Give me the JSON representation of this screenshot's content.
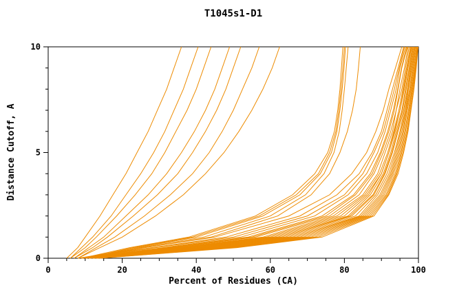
{
  "page": {
    "background": "#ffffff"
  },
  "chart_data": {
    "type": "line",
    "title": "T1045s1-D1",
    "xlabel": "Percent of Residues (CA)",
    "ylabel": "Distance Cutoff, A",
    "xlim": [
      0,
      100
    ],
    "ylim": [
      0,
      10
    ],
    "x_major_ticks": [
      0,
      20,
      40,
      60,
      80,
      100
    ],
    "x_minor_step": 5,
    "y_major_ticks": [
      0,
      5,
      10
    ],
    "y_minor_step": 1,
    "grid": false,
    "legend": "none",
    "series_color": "#ED8B00",
    "axis_color": "#000000",
    "y_grid": [
      0,
      0.5,
      1,
      2,
      3,
      4,
      5,
      6,
      7,
      8,
      9,
      10
    ],
    "series": [
      {
        "x": [
          8,
          28,
          48,
          68,
          78,
          84,
          87.5,
          90,
          91.5,
          93,
          94.5,
          96
        ]
      },
      {
        "x": [
          9,
          31,
          52,
          72,
          81,
          86,
          89,
          91,
          92.5,
          94,
          95,
          96.5
        ]
      },
      {
        "x": [
          9,
          33,
          55,
          75,
          83,
          87.5,
          90,
          92,
          93.5,
          94.5,
          95.5,
          97
        ]
      },
      {
        "x": [
          10,
          35,
          58,
          77,
          85,
          89,
          91,
          93,
          94,
          95.5,
          96.5,
          97.5
        ]
      },
      {
        "x": [
          10,
          37,
          60,
          79,
          86,
          90,
          92,
          93.5,
          95,
          96,
          97,
          98
        ]
      },
      {
        "x": [
          11,
          39,
          62,
          81,
          87,
          90.5,
          92.5,
          94,
          95.5,
          96.5,
          97.5,
          98.3
        ]
      },
      {
        "x": [
          11,
          41,
          64,
          82,
          88,
          91,
          93,
          94.5,
          96,
          97,
          97.8,
          98.6
        ]
      },
      {
        "x": [
          12,
          43,
          66,
          84,
          89,
          92,
          93.8,
          95.2,
          96.5,
          97.3,
          98.2,
          99
        ]
      },
      {
        "x": [
          12,
          45,
          68,
          85,
          90,
          92.7,
          94.4,
          95.8,
          96.8,
          97.8,
          98.6,
          99.3
        ]
      },
      {
        "x": [
          13,
          47,
          70,
          86,
          90.8,
          93.3,
          95,
          96.3,
          97.3,
          98.2,
          99,
          99.7
        ]
      },
      {
        "x": [
          13,
          49,
          72,
          87,
          91.5,
          94,
          95.5,
          96.8,
          97.7,
          98.5,
          99.2,
          99.8
        ]
      },
      {
        "x": [
          14,
          51,
          74,
          88,
          92,
          94.5,
          96,
          97.2,
          98,
          98.8,
          99.4,
          99.9
        ]
      },
      {
        "x": [
          8,
          26,
          45,
          65,
          76,
          82,
          86,
          88.5,
          90.5,
          92,
          93.8,
          95.5
        ]
      },
      {
        "x": [
          9,
          29,
          50,
          70,
          80,
          85,
          88,
          90.5,
          92,
          93.5,
          94.8,
          96.2
        ]
      },
      {
        "x": [
          10,
          34,
          56,
          76,
          84,
          88,
          90.5,
          92.5,
          94,
          95,
          96.2,
          97.2
        ]
      },
      {
        "x": [
          11,
          38,
          61,
          80,
          86.5,
          90,
          92,
          93.7,
          95,
          96.2,
          97.2,
          98.1
        ]
      },
      {
        "x": [
          12,
          42,
          65,
          83,
          88.5,
          91.5,
          93.5,
          95,
          96.2,
          97.2,
          98,
          98.8
        ]
      },
      {
        "x": [
          13,
          46,
          69,
          85.5,
          90.4,
          93,
          94.7,
          96,
          97,
          98,
          98.8,
          99.5
        ]
      },
      {
        "x": [
          14,
          50,
          73,
          87.5,
          91.8,
          94.2,
          95.8,
          97,
          97.9,
          98.7,
          99.3,
          99.9
        ]
      },
      {
        "x": [
          10,
          36,
          59,
          78,
          85.5,
          89.5,
          91.7,
          93.3,
          94.7,
          95.8,
          96.8,
          97.8
        ]
      },
      {
        "x": [
          11,
          40,
          63,
          81.5,
          87.7,
          90.8,
          92.8,
          94.3,
          95.7,
          96.7,
          97.6,
          98.4
        ]
      },
      {
        "x": [
          12,
          44,
          67,
          84.5,
          89.6,
          92.4,
          94.1,
          95.5,
          96.6,
          97.6,
          98.4,
          99.1
        ]
      },
      {
        "x": [
          13,
          48,
          71,
          86.5,
          91.2,
          93.7,
          95.3,
          96.5,
          97.5,
          98.3,
          99.1,
          99.6
        ]
      },
      {
        "x": [
          9,
          32,
          54,
          74,
          82.5,
          87,
          89.7,
          91.7,
          93.2,
          94.4,
          95.4,
          96.8
        ]
      },
      {
        "x": [
          9,
          22,
          38,
          56,
          66,
          72,
          75.5,
          77.3,
          78.2,
          78.8,
          79.2,
          79.6
        ]
      },
      {
        "x": [
          10,
          24,
          40,
          58,
          68,
          73.5,
          76.5,
          78,
          78.8,
          79.4,
          79.9,
          80.3
        ]
      },
      {
        "x": [
          10,
          23,
          39,
          57,
          67,
          73,
          76,
          77.7,
          78.5,
          79.1,
          79.6,
          80
        ]
      },
      {
        "x": [
          11,
          25,
          42,
          60,
          69.5,
          74.5,
          77.2,
          78.6,
          79.4,
          80,
          80.5,
          81
        ]
      },
      {
        "x": [
          10,
          26,
          44,
          62,
          71,
          76,
          78.8,
          80.8,
          82.2,
          83.2,
          83.8,
          84.3
        ]
      },
      {
        "x": [
          6,
          9,
          12,
          17,
          21,
          25,
          28.5,
          31.5,
          34,
          36.5,
          38.5,
          40.5
        ]
      },
      {
        "x": [
          6,
          10,
          13,
          18.5,
          23.5,
          28,
          31.5,
          34.5,
          37.5,
          40,
          42,
          44
        ]
      },
      {
        "x": [
          7,
          11,
          15,
          21,
          27,
          32,
          36,
          39.5,
          42.5,
          45,
          47,
          49
        ]
      },
      {
        "x": [
          7,
          12,
          16,
          23,
          29.5,
          35,
          39,
          42.5,
          45.5,
          48,
          50,
          52
        ]
      },
      {
        "x": [
          8,
          13,
          18,
          26,
          33,
          39,
          43.5,
          47,
          50,
          52.5,
          55,
          57
        ]
      },
      {
        "x": [
          8,
          14,
          20,
          29,
          36.5,
          42.5,
          47.5,
          51.5,
          55,
          58,
          60.5,
          62.5
        ]
      },
      {
        "x": [
          5,
          8,
          10,
          14,
          17.5,
          21,
          24,
          27,
          29.5,
          32,
          34,
          36
        ]
      }
    ]
  }
}
